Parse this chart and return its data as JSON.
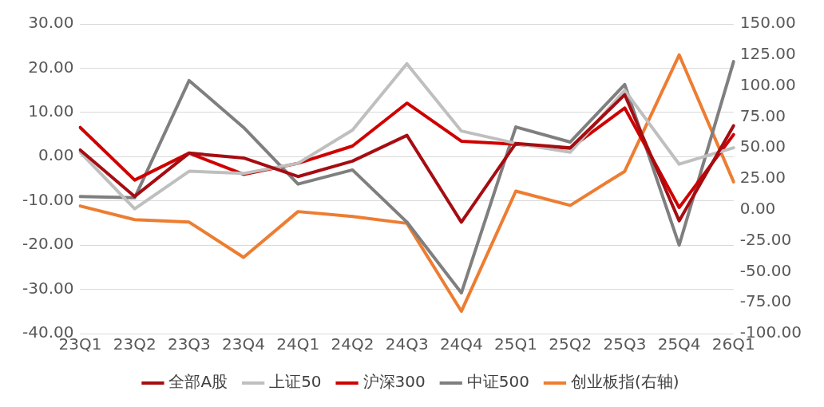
{
  "chart_data": {
    "type": "line",
    "categories": [
      "23Q1",
      "23Q2",
      "23Q3",
      "23Q4",
      "24Q1",
      "24Q2",
      "24Q3",
      "24Q4",
      "25Q1",
      "25Q2",
      "25Q3",
      "25Q4",
      "26Q1"
    ],
    "series": [
      {
        "name": "全部A股",
        "color": "#a50d12",
        "values": [
          1.5,
          -9,
          0.8,
          -0.3,
          -4.5,
          -1,
          4.8,
          -14.8,
          3,
          2,
          14,
          -14.5,
          7
        ]
      },
      {
        "name": "上证50",
        "color": "#bfbfbf",
        "values": [
          1,
          -11.8,
          -3.3,
          -3.8,
          -1.5,
          6,
          21,
          5.8,
          3,
          1,
          15,
          -1.7,
          2
        ]
      },
      {
        "name": "沪深300",
        "color": "#d00000",
        "values": [
          6.6,
          -5.3,
          0.8,
          -4,
          -1.5,
          2.4,
          12.1,
          3.5,
          2.8,
          1.9,
          11,
          -11.5,
          5
        ]
      },
      {
        "name": "中证500",
        "color": "#7f7f7f",
        "values": [
          -9,
          -9.3,
          17.2,
          6.6,
          -6.2,
          -3,
          -14.8,
          -30.8,
          6.7,
          3.3,
          16.3,
          -20,
          21.5
        ]
      },
      {
        "name": "创业板指(右轴)",
        "color": "#ed7d31",
        "axis": "y2",
        "values": [
          3,
          -8,
          -10,
          -38.5,
          -1.5,
          -5.5,
          -11,
          -82,
          15,
          3.5,
          31,
          125,
          22.5
        ]
      }
    ],
    "ylim": [
      -40,
      30
    ],
    "yticks": [
      {
        "value": -40,
        "label": "-40.00"
      },
      {
        "value": -30,
        "label": "-30.00"
      },
      {
        "value": -20,
        "label": "-20.00"
      },
      {
        "value": -10,
        "label": "-10.00"
      },
      {
        "value": 0,
        "label": "0.00"
      },
      {
        "value": 10,
        "label": "10.00"
      },
      {
        "value": 20,
        "label": "20.00"
      },
      {
        "value": 30,
        "label": "30.00"
      }
    ],
    "y2lim": [
      -100,
      150
    ],
    "y2ticks": [
      {
        "value": -100,
        "label": "-100.00"
      },
      {
        "value": -75,
        "label": "-75.00"
      },
      {
        "value": -50,
        "label": "-50.00"
      },
      {
        "value": -25,
        "label": "-25.00"
      },
      {
        "value": 0,
        "label": "0.00"
      },
      {
        "value": 25,
        "label": "25.00"
      },
      {
        "value": 50,
        "label": "50.00"
      },
      {
        "value": 75,
        "label": "75.00"
      },
      {
        "value": 100,
        "label": "100.00"
      },
      {
        "value": 125,
        "label": "125.00"
      },
      {
        "value": 150,
        "label": "150.00"
      }
    ],
    "grid": "y",
    "legend": "bottom",
    "marker": "none",
    "line_style": "solid"
  }
}
